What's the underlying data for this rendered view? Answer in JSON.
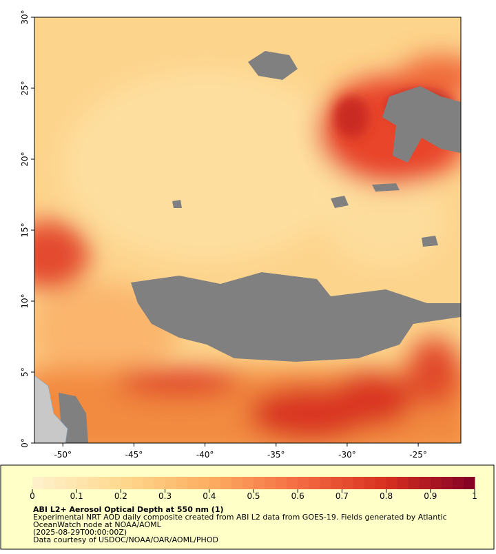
{
  "map": {
    "xlim": [
      -52,
      -22
    ],
    "ylim": [
      0,
      30
    ],
    "xticks": [
      {
        "value": -50,
        "label": "-50°"
      },
      {
        "value": -45,
        "label": "-45°"
      },
      {
        "value": -40,
        "label": "-40°"
      },
      {
        "value": -35,
        "label": "-35°"
      },
      {
        "value": -30,
        "label": "-30°"
      },
      {
        "value": -25,
        "label": "-25°"
      }
    ],
    "yticks": [
      {
        "value": 0,
        "label": "0°"
      },
      {
        "value": 5,
        "label": "5°"
      },
      {
        "value": 10,
        "label": "10°"
      },
      {
        "value": 15,
        "label": "15°"
      },
      {
        "value": 20,
        "label": "20°"
      },
      {
        "value": 25,
        "label": "25°"
      },
      {
        "value": 30,
        "label": "30°"
      }
    ]
  },
  "colorbar": {
    "clim": [
      0,
      1
    ],
    "ticks": [
      0,
      0.1,
      0.2,
      0.3,
      0.4,
      0.5,
      0.6,
      0.7,
      0.8,
      0.9,
      1
    ]
  },
  "caption": {
    "title": "ABI L2+ Aerosol Optical Depth at 550 nm (1)",
    "lines": [
      "Experimental NRT AOD daily composite created from ABI L2 data from GOES-19. Fields generated by Atlantic",
      "OceanWatch node at NOAA/AOML",
      "(2025-08-29T00:00:00Z)",
      "Data courtesy of USDOC/NOAA/OAR/AOML/PHOD"
    ]
  }
}
